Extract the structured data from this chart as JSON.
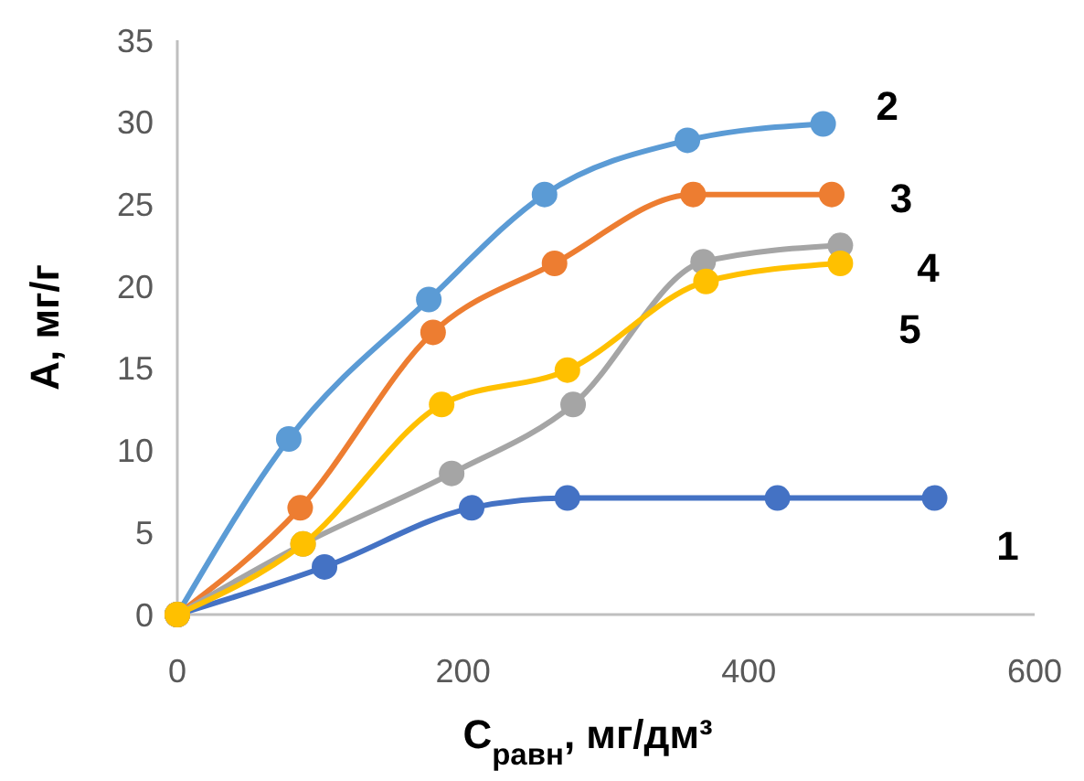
{
  "chart_data": {
    "type": "line",
    "xlabel": "C$_{равн}$, мг/дм³",
    "ylabel": "А, мг/г",
    "xlim": [
      0,
      600
    ],
    "xticks": [
      0,
      200,
      400,
      600
    ],
    "ylim": [
      0,
      35
    ],
    "yticks": [
      0,
      5,
      10,
      15,
      20,
      25,
      30,
      35
    ],
    "grid": false,
    "marker": "circle",
    "line_style": "solid",
    "series": [
      {
        "name": "1",
        "color": "#4472c4",
        "x": [
          0,
          103,
          206,
          273,
          420,
          530
        ],
        "values": [
          0,
          2.9,
          6.5,
          7.1,
          7.1,
          7.1
        ]
      },
      {
        "name": "2",
        "color": "#5b9bd5",
        "x": [
          0,
          78,
          176,
          257,
          357,
          452
        ],
        "values": [
          0,
          10.7,
          19.2,
          25.6,
          28.9,
          29.9
        ]
      },
      {
        "name": "3",
        "color": "#ed7d31",
        "x": [
          0,
          86,
          179,
          264,
          361,
          458
        ],
        "values": [
          0,
          6.5,
          17.2,
          21.4,
          25.6,
          25.6
        ]
      },
      {
        "name": "4",
        "color": "#a5a5a5",
        "x": [
          0,
          88,
          192,
          277,
          368,
          464
        ],
        "values": [
          0,
          4.3,
          8.6,
          12.8,
          21.5,
          22.5
        ]
      },
      {
        "name": "5",
        "color": "#ffc000",
        "x": [
          0,
          88,
          185,
          273,
          370,
          464
        ],
        "values": [
          0,
          4.3,
          12.8,
          14.9,
          20.3,
          21.4
        ]
      }
    ]
  }
}
